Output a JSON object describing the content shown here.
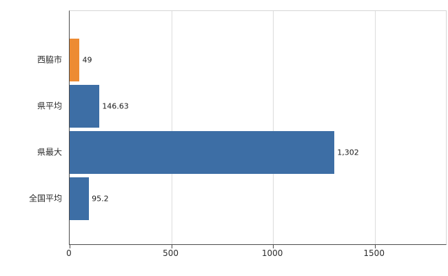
{
  "chart_data": {
    "type": "bar",
    "orientation": "horizontal",
    "title": "",
    "xlabel": "",
    "ylabel": "",
    "categories": [
      "西脇市",
      "県平均",
      "県最大",
      "全国平均"
    ],
    "values": [
      49,
      146.63,
      1302,
      95.2
    ],
    "value_labels": [
      "49",
      "146.63",
      "1,302",
      "95.2"
    ],
    "bar_colors": [
      "#ED8B33",
      "#3D6EA5",
      "#3D6EA5",
      "#3D6EA5"
    ],
    "highlight_color": "#ED8B33",
    "series_color": "#3D6EA5",
    "xlim": [
      0,
      1850
    ],
    "x_ticks": [
      0,
      500,
      1000,
      1500
    ],
    "x_tick_labels": [
      "0",
      "500",
      "1000",
      "1500"
    ],
    "grid": true,
    "legend": false
  }
}
